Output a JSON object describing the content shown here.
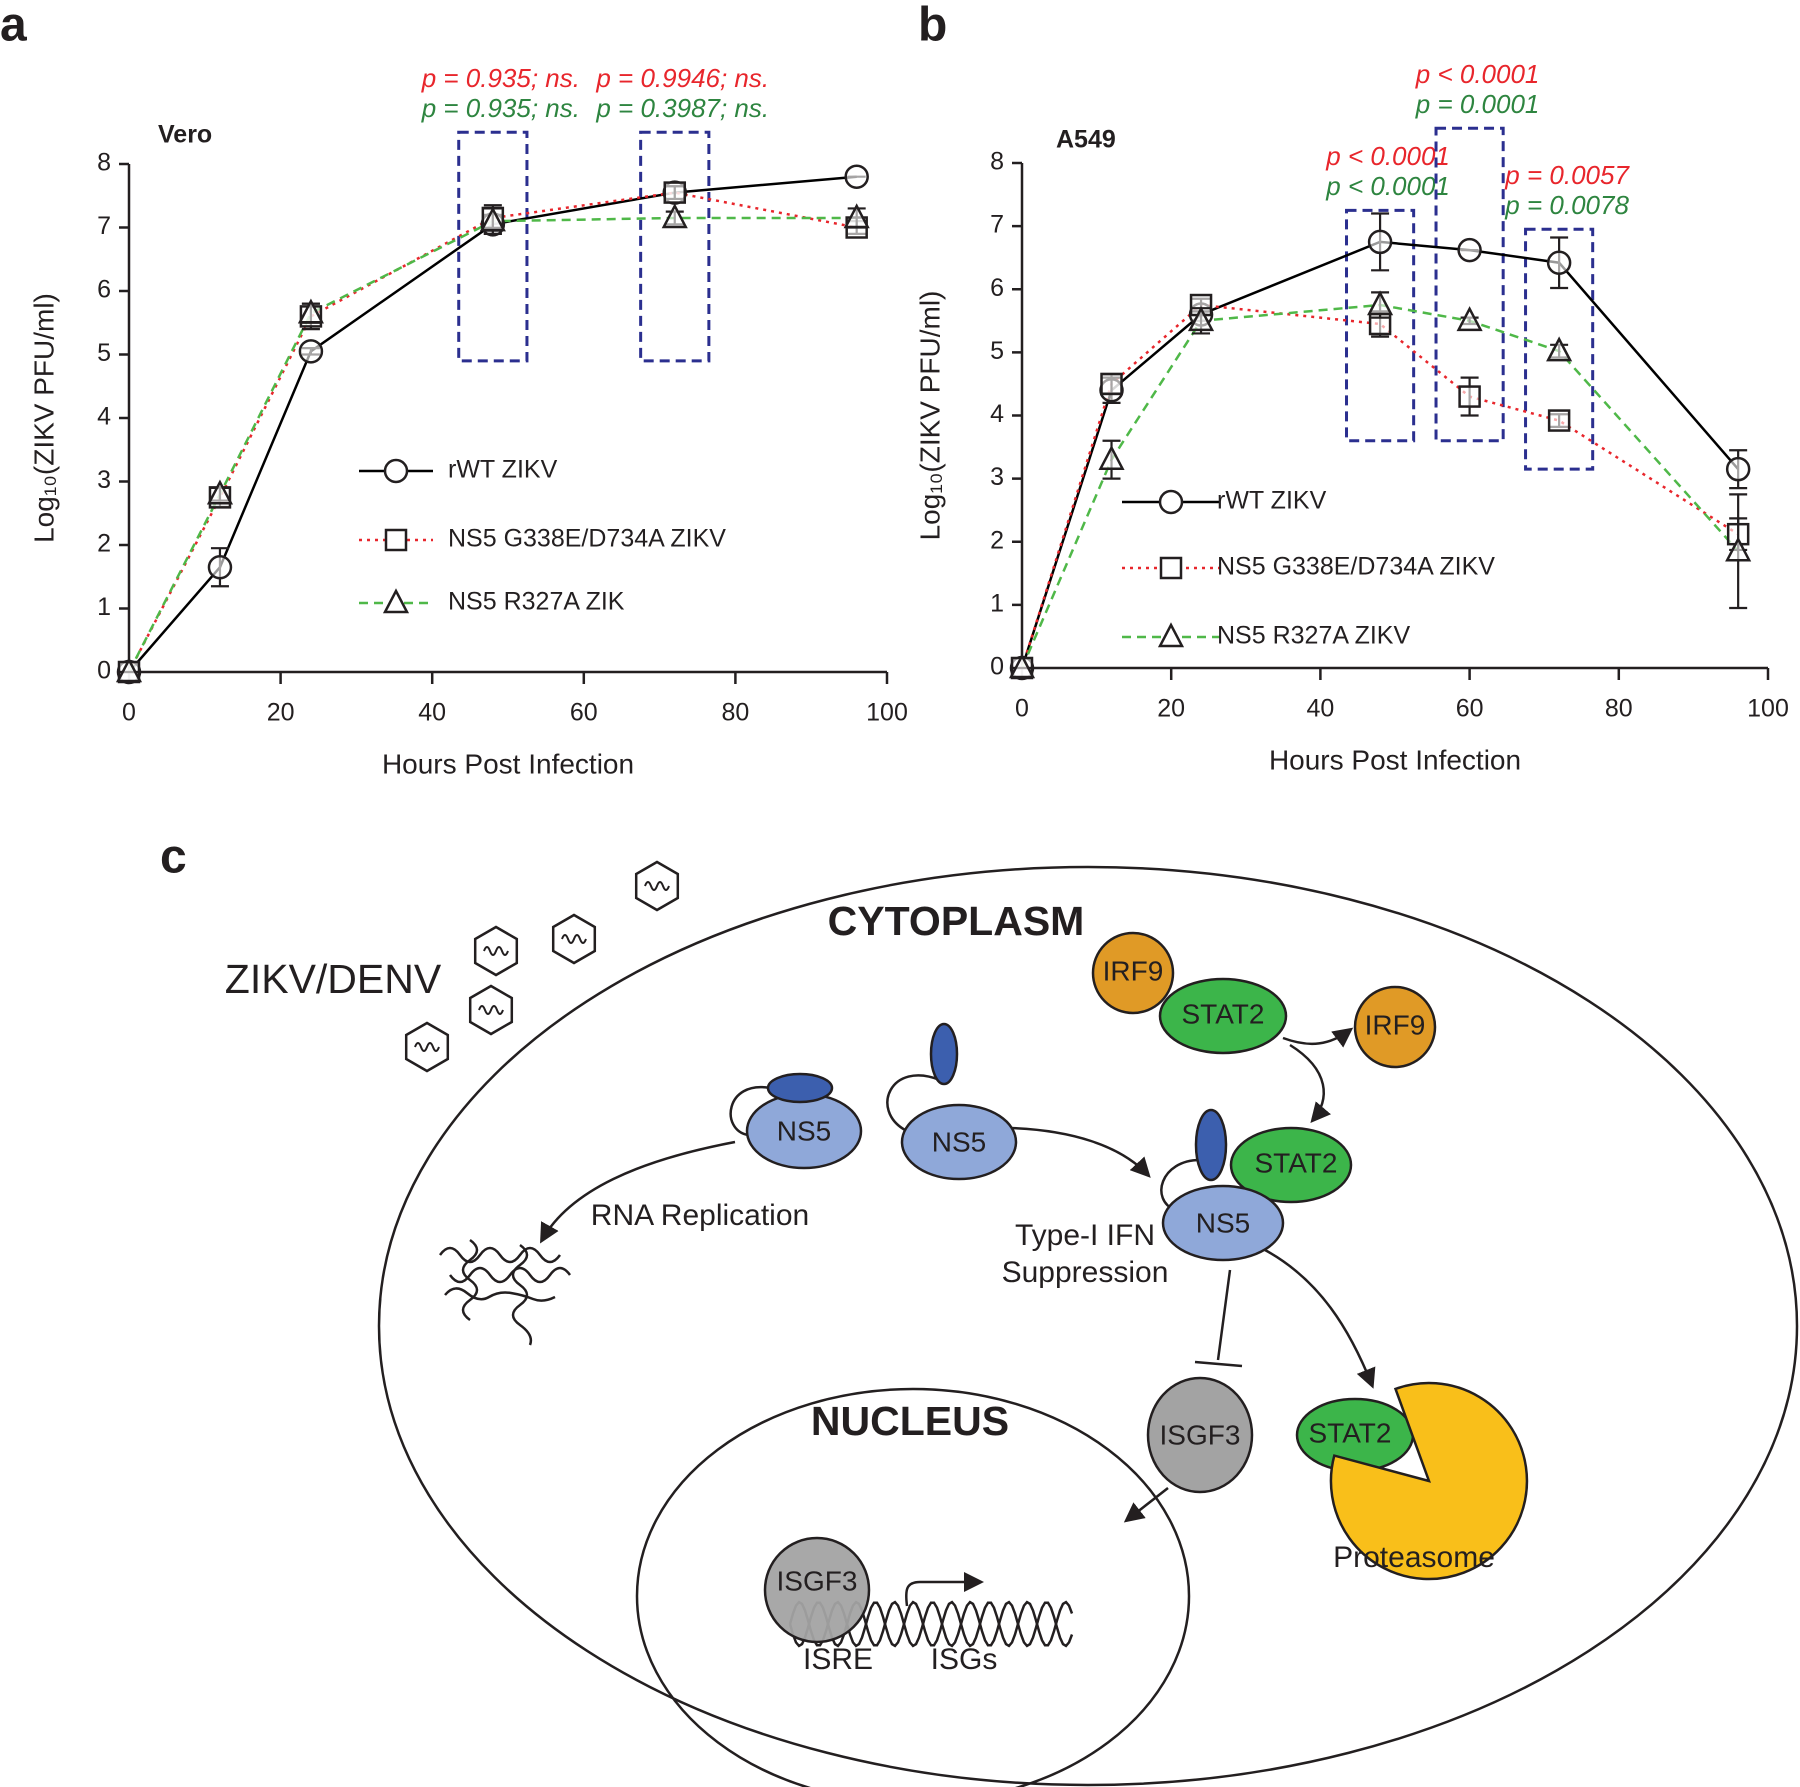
{
  "chart_data": [
    {
      "type": "line",
      "panel_label": "a",
      "subtitle": "Vero",
      "x_label": "Hours Post Infection",
      "y_label": "Log₁₀(ZIKV PFU/ml)",
      "x": [
        0,
        12,
        24,
        48,
        72,
        96
      ],
      "xlim": [
        0,
        100
      ],
      "xticks": [
        0,
        20,
        40,
        60,
        80,
        100
      ],
      "ylim": [
        0,
        8
      ],
      "yticks": [
        0,
        1,
        2,
        3,
        4,
        5,
        6,
        7,
        8
      ],
      "series": [
        {
          "name": "rWT ZIKV",
          "color": "#000000",
          "style": "solid",
          "marker": "circle",
          "values": [
            0,
            1.65,
            5.05,
            7.05,
            7.55,
            7.8
          ],
          "errors": [
            0,
            0.3,
            0.05,
            0.15,
            0.1,
            0
          ]
        },
        {
          "name": "NS5 G338E/D734A ZIKV",
          "color": "#e8262c",
          "style": "dotted",
          "marker": "square",
          "values": [
            0,
            2.75,
            5.6,
            7.15,
            7.55,
            7.0
          ],
          "errors": [
            0,
            0.15,
            0.2,
            0.2,
            0.1,
            0.1
          ]
        },
        {
          "name": "NS5 R327A ZIK",
          "color": "#4fb848",
          "style": "dashed",
          "marker": "triangle",
          "values": [
            0,
            2.8,
            5.65,
            7.1,
            7.15,
            7.15
          ],
          "errors": [
            0,
            0.1,
            0.15,
            0.2,
            0.1,
            0.15
          ]
        }
      ],
      "annotations": [
        {
          "x": 48,
          "box": [
            4.9,
            8.5
          ],
          "labels": [
            {
              "text": "p = 0.935; ns.",
              "color": "#e8262c"
            },
            {
              "text": "p = 0.935; ns.",
              "color": "#2e8540"
            }
          ]
        },
        {
          "x": 72,
          "box": [
            4.9,
            8.5
          ],
          "labels": [
            {
              "text": "p = 0.9946; ns.",
              "color": "#e8262c"
            },
            {
              "text": "p = 0.3987; ns.",
              "color": "#2e8540"
            }
          ]
        }
      ]
    },
    {
      "type": "line",
      "panel_label": "b",
      "subtitle": "A549",
      "x_label": "Hours Post Infection",
      "y_label": "Log₁₀(ZIKV PFU/ml)",
      "x": [
        0,
        12,
        24,
        48,
        60,
        72,
        96
      ],
      "xlim": [
        0,
        100
      ],
      "xticks": [
        0,
        20,
        40,
        60,
        80,
        100
      ],
      "ylim": [
        0,
        8
      ],
      "yticks": [
        0,
        1,
        2,
        3,
        4,
        5,
        6,
        7,
        8
      ],
      "series": [
        {
          "name": "rWT ZIKV",
          "color": "#000000",
          "style": "solid",
          "marker": "circle",
          "values": [
            0,
            4.4,
            5.6,
            6.75,
            6.62,
            6.42,
            3.15
          ],
          "errors": [
            0,
            0.2,
            0.1,
            0.45,
            0,
            0.4,
            0.3
          ]
        },
        {
          "name": "NS5 G338E/D734A ZIKV",
          "color": "#e8262c",
          "style": "dotted",
          "marker": "square",
          "values": [
            0,
            4.5,
            5.75,
            5.45,
            4.3,
            3.92,
            2.12
          ],
          "errors": [
            0,
            0.15,
            0.1,
            0.2,
            0.3,
            0.1,
            0.25
          ]
        },
        {
          "name": "NS5 R327A ZIKV",
          "color": "#4fb848",
          "style": "dashed",
          "marker": "triangle",
          "values": [
            0,
            3.3,
            5.5,
            5.75,
            5.5,
            5.02,
            1.85
          ],
          "errors": [
            0,
            0.3,
            0.2,
            0.2,
            0.05,
            0.1,
            0.9
          ]
        }
      ],
      "annotations": [
        {
          "x": 48,
          "box": [
            3.6,
            7.25
          ],
          "labels": [
            {
              "text": "p < 0.0001",
              "color": "#e8262c"
            },
            {
              "text": "p < 0.0001",
              "color": "#2e8540"
            }
          ]
        },
        {
          "x": 60,
          "box": [
            3.6,
            8.55
          ],
          "labels": [
            {
              "text": "p < 0.0001",
              "color": "#e8262c"
            },
            {
              "text": "p = 0.0001",
              "color": "#2e8540"
            }
          ]
        },
        {
          "x": 72,
          "box": [
            3.15,
            6.95
          ],
          "labels": [
            {
              "text": "p = 0.0057",
              "color": "#e8262c"
            },
            {
              "text": "p = 0.0078",
              "color": "#2e8540"
            }
          ]
        }
      ]
    }
  ],
  "diagram": {
    "panel_label": "c",
    "cytoplasm": "CYTOPLASM",
    "nucleus": "NUCLEUS",
    "virus": "ZIKV/DENV",
    "rna_replication": "RNA Replication",
    "suppression": [
      "Type-I IFN",
      "Suppression"
    ],
    "proteasome": "Proteasome",
    "isre": "ISRE",
    "isgs": "ISGs",
    "nodes": [
      {
        "label": "IRF9"
      },
      {
        "label": "STAT2"
      },
      {
        "label": "IRF9"
      },
      {
        "label": "NS5"
      },
      {
        "label": "NS5"
      },
      {
        "label": "STAT2"
      },
      {
        "label": "NS5"
      },
      {
        "label": "ISGF3"
      },
      {
        "label": "STAT2"
      },
      {
        "label": "ISGF3"
      }
    ]
  }
}
